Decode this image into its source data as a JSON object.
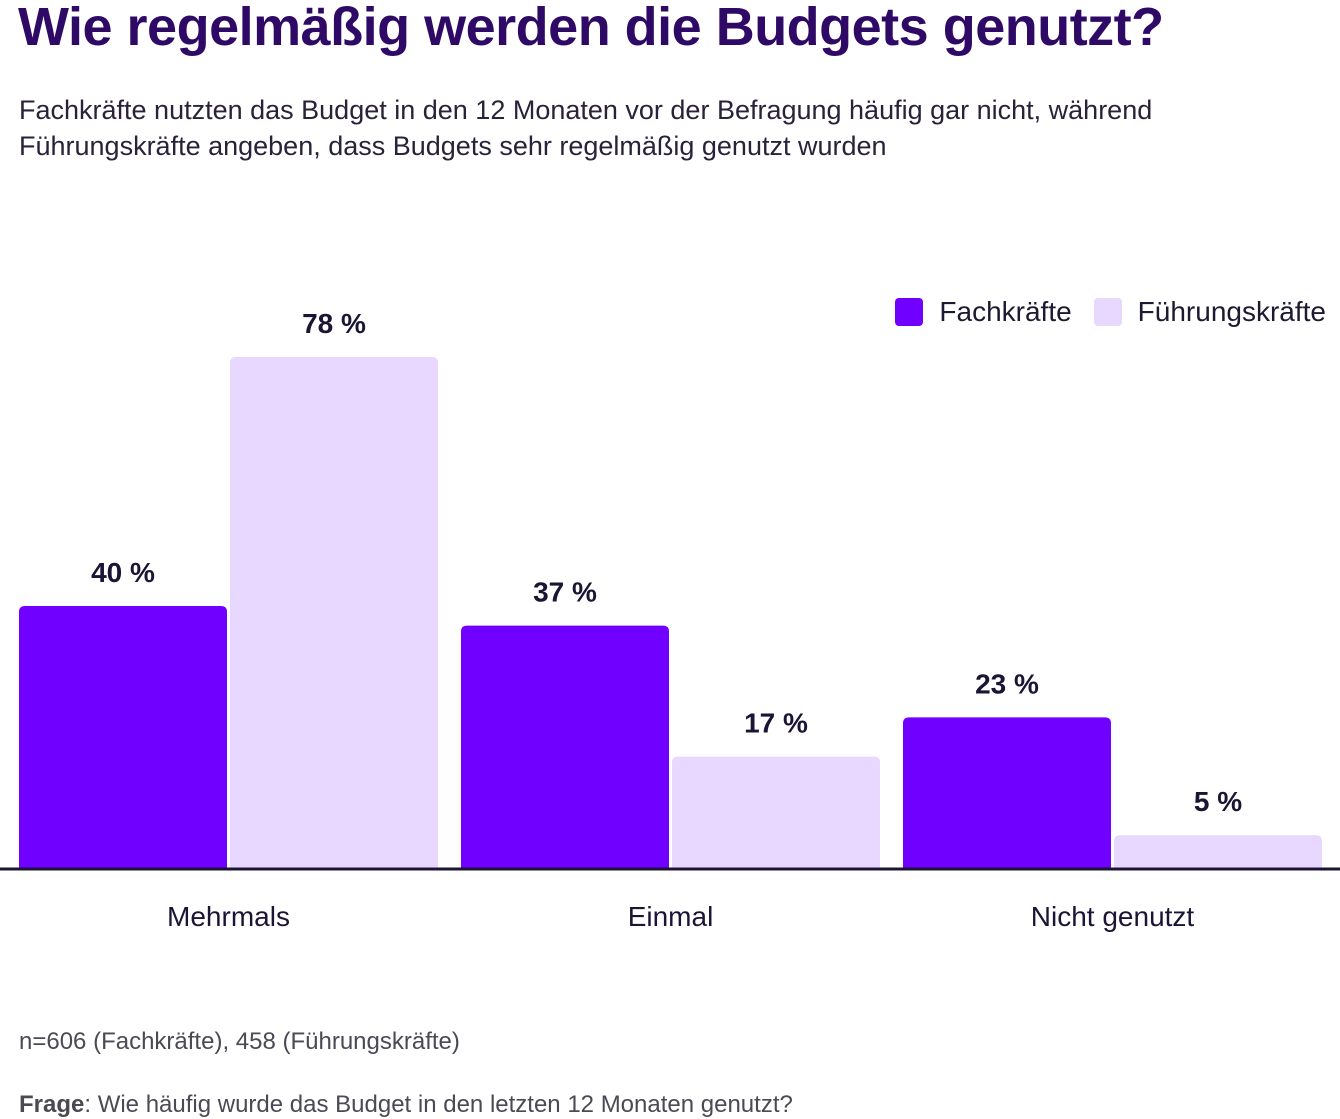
{
  "title": "Wie regelmäßig werden die Budgets genutzt?",
  "subtitle": "Fachkräfte nutzten das Budget in den 12 Monaten vor der Befragung häufig gar nicht, während Führungskräfte angeben, dass Budgets sehr regelmäßig genutzt wurden",
  "legend": [
    {
      "label": "Fachkräfte",
      "color": "#7000ff"
    },
    {
      "label": "Führungskräfte",
      "color": "#e8d7ff"
    }
  ],
  "chart_data": {
    "type": "bar",
    "categories": [
      "Mehrmals",
      "Einmal",
      "Nicht genutzt"
    ],
    "series": [
      {
        "name": "Fachkräfte",
        "values": [
          40,
          37,
          23
        ],
        "labels": [
          "40 %",
          "37 %",
          "23 %"
        ],
        "color": "#7000ff"
      },
      {
        "name": "Führungskräfte",
        "values": [
          78,
          17,
          5
        ],
        "labels": [
          "78 %",
          "17 %",
          "5 %"
        ],
        "color": "#e8d7ff"
      }
    ],
    "ylim": [
      0,
      78
    ],
    "xlabel": "",
    "ylabel": "",
    "legend": "top-right",
    "grid": false
  },
  "footer": {
    "note": "n=606 (Fachkräfte), 458 (Führungskräfte)",
    "question_label": "Frage",
    "question_text": ": Wie häufig wurde das Budget in den letzten 12 Monaten genutzt?"
  }
}
